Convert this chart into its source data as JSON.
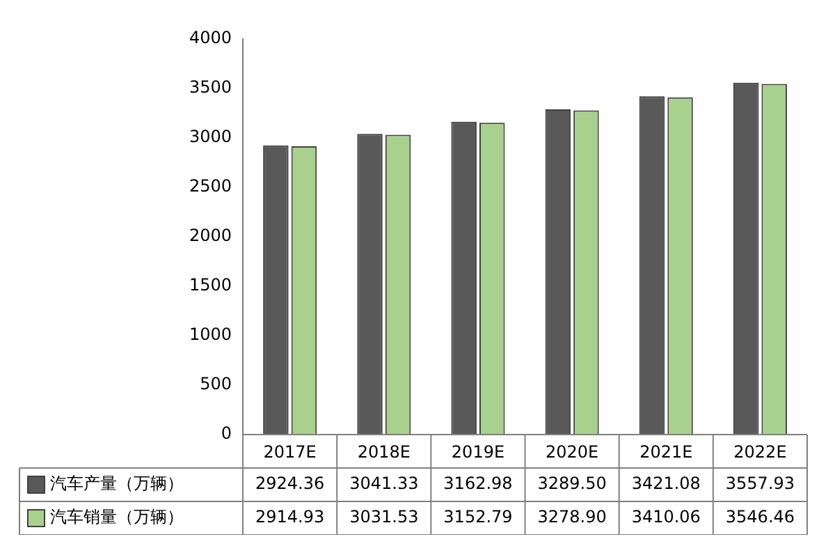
{
  "chart_data": {
    "type": "bar",
    "categories": [
      "2017E",
      "2018E",
      "2019E",
      "2020E",
      "2021E",
      "2022E"
    ],
    "series": [
      {
        "name": "汽车产量（万辆）",
        "color": "#595959",
        "values": [
          2924.36,
          3041.33,
          3162.98,
          3289.5,
          3421.08,
          3557.93
        ],
        "value_labels": [
          "2924.36",
          "3041.33",
          "3162.98",
          "3289.50",
          "3421.08",
          "3557.93"
        ]
      },
      {
        "name": "汽车销量（万辆）",
        "color": "#a9d18e",
        "values": [
          2914.93,
          3031.53,
          3152.79,
          3278.9,
          3410.06,
          3546.46
        ],
        "value_labels": [
          "2914.93",
          "3031.53",
          "3152.79",
          "3278.90",
          "3410.06",
          "3546.46"
        ]
      }
    ],
    "ylim": [
      0,
      4000
    ],
    "yticks": [
      0,
      500,
      1000,
      1500,
      2000,
      2500,
      3000,
      3500,
      4000
    ],
    "grid": false,
    "legend": "bottom"
  }
}
